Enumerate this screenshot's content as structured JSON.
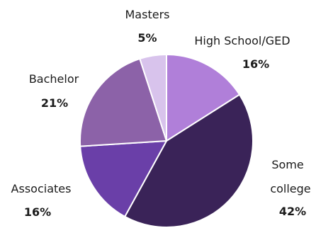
{
  "chart_data": {
    "type": "pie",
    "title": "",
    "start_angle_deg": 0,
    "direction": "clockwise",
    "slices": [
      {
        "label": "High School/GED",
        "value": 16,
        "value_label": "16%",
        "color": "#b07fd9"
      },
      {
        "label": "Some college",
        "value": 42,
        "value_label": "42%",
        "color": "#3a2358"
      },
      {
        "label": "Associates",
        "value": 16,
        "value_label": "16%",
        "color": "#6a3fa8"
      },
      {
        "label": "Bachelor",
        "value": 21,
        "value_label": "21%",
        "color": "#8c62a8"
      },
      {
        "label": "Masters",
        "value": 5,
        "value_label": "5%",
        "color": "#d8c3ec"
      }
    ]
  }
}
